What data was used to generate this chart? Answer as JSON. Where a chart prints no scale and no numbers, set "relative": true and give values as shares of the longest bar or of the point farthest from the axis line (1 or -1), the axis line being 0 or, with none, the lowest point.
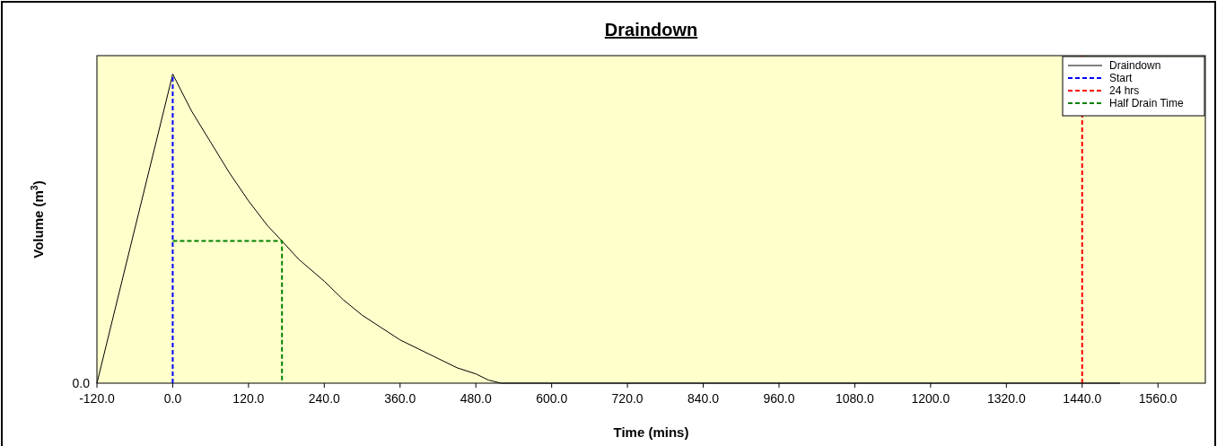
{
  "chart_data": {
    "type": "line",
    "title": "Draindown",
    "xlabel": "Time (mins)",
    "ylabel": "Volume (m$^{3}$)",
    "relative": true,
    "xlim": [
      -120,
      1635
    ],
    "xticks": [
      {
        "value": -120,
        "label": "-120.0"
      },
      {
        "value": 0,
        "label": "0.0"
      },
      {
        "value": 120,
        "label": "120.0"
      },
      {
        "value": 240,
        "label": "240.0"
      },
      {
        "value": 360,
        "label": "360.0"
      },
      {
        "value": 480,
        "label": "480.0"
      },
      {
        "value": 600,
        "label": "600.0"
      },
      {
        "value": 720,
        "label": "720.0"
      },
      {
        "value": 840,
        "label": "840.0"
      },
      {
        "value": 960,
        "label": "960.0"
      },
      {
        "value": 1080,
        "label": "1080.0"
      },
      {
        "value": 1200,
        "label": "1200.0"
      },
      {
        "value": 1320,
        "label": "1320.0"
      },
      {
        "value": 1440,
        "label": "1440.0"
      },
      {
        "value": 1560,
        "label": "1560.0"
      }
    ],
    "annotations": [
      "0.0"
    ],
    "legend": "top right",
    "marker": "none",
    "series": [
      {
        "name": "Draindown",
        "color": "#000000",
        "line_style": "solid",
        "x": [
          -120,
          0,
          30,
          60,
          90,
          120,
          150,
          173,
          200,
          240,
          270,
          300,
          330,
          360,
          390,
          420,
          450,
          480,
          500,
          520,
          1500
        ],
        "values": [
          0,
          1,
          0.88,
          0.78,
          0.68,
          0.59,
          0.51,
          0.46,
          0.4,
          0.33,
          0.27,
          0.22,
          0.18,
          0.14,
          0.11,
          0.08,
          0.05,
          0.03,
          0.01,
          0,
          0
        ]
      },
      {
        "name": "Start",
        "color": "#0000ff",
        "line_style": "dashed",
        "x": [
          0,
          0
        ],
        "values": [
          0,
          1
        ]
      },
      {
        "name": "Half Drain Time",
        "color": "#008000",
        "line_style": "dashed",
        "x": [
          0,
          173,
          173
        ],
        "values": [
          0.46,
          0.46,
          0
        ]
      }
    ],
    "ref_lines": [
      {
        "axis": "x",
        "value": 1440,
        "label": "24 hrs",
        "color": "#ff0000",
        "line_style": "dashed"
      }
    ]
  }
}
